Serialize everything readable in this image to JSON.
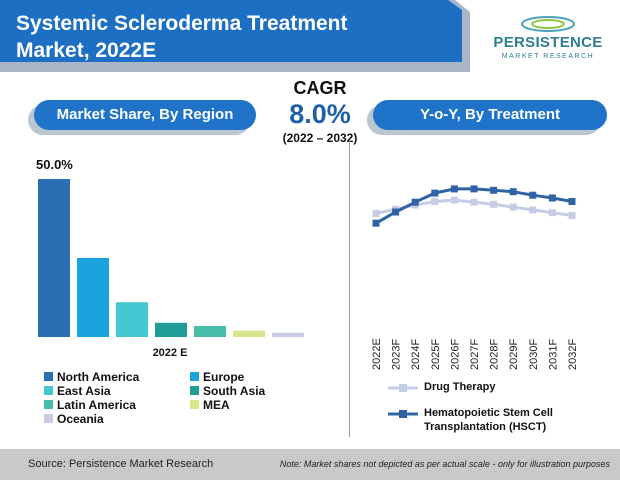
{
  "header": {
    "title_line1": "Systemic Scleroderma Treatment",
    "title_line2": "Market, 2022E",
    "logo_name": "PERSISTENCE",
    "logo_sub": "MARKET RESEARCH"
  },
  "cagr": {
    "label": "CAGR",
    "value": "8.0%",
    "years": "(2022 – 2032)"
  },
  "panels": {
    "left_title": "Market Share, By Region",
    "right_title": "Y-o-Y, By Treatment"
  },
  "chart_data": [
    {
      "type": "bar",
      "title": "Market Share, By Region",
      "top_value_label": "50.0%",
      "xlabel": "2022 E",
      "categories": [
        "North America",
        "Europe",
        "East Asia",
        "South Asia",
        "Latin America",
        "MEA",
        "Oceania"
      ],
      "values": [
        50.0,
        25.0,
        11.0,
        4.5,
        3.5,
        2.0,
        1.3
      ],
      "colors": [
        "#2a6fb3",
        "#1aa3dd",
        "#40c7cf",
        "#1f9c96",
        "#46bea8",
        "#d7e58b",
        "#c8cbe3"
      ],
      "ylim": [
        0,
        50
      ]
    },
    {
      "type": "line",
      "title": "Y-o-Y, By Treatment",
      "x": [
        "2022E",
        "2023F",
        "2024F",
        "2025F",
        "2026F",
        "2027F",
        "2028F",
        "2029F",
        "2030F",
        "2031F",
        "2032F"
      ],
      "ylim": [
        0,
        10
      ],
      "series": [
        {
          "name": "Drug Therapy",
          "color": "#c5cde6",
          "values": [
            6.9,
            7.2,
            7.5,
            7.75,
            7.85,
            7.7,
            7.55,
            7.35,
            7.15,
            6.95,
            6.75
          ]
        },
        {
          "name": "Hematopoietic Stem Cell Transplantation (HSCT)",
          "color": "#2f63a6",
          "values": [
            6.2,
            7.0,
            7.7,
            8.35,
            8.65,
            8.65,
            8.55,
            8.45,
            8.2,
            8.0,
            7.75
          ]
        }
      ]
    }
  ],
  "legend_left": [
    "North America",
    "Europe",
    "East Asia",
    "South Asia",
    "Latin America",
    "MEA",
    "Oceania"
  ],
  "legend_right": [
    "Drug Therapy",
    "Hematopoietic Stem Cell",
    "Transplantation (HSCT)"
  ],
  "footer": {
    "source": "Source: Persistence Market Research",
    "note": "Note: Market shares not depicted as per actual scale - only for illustration purposes"
  },
  "colors": {
    "accent": "#1f74c9",
    "banner": "#1d6fc4",
    "footer_bg": "#c9c9c9"
  }
}
